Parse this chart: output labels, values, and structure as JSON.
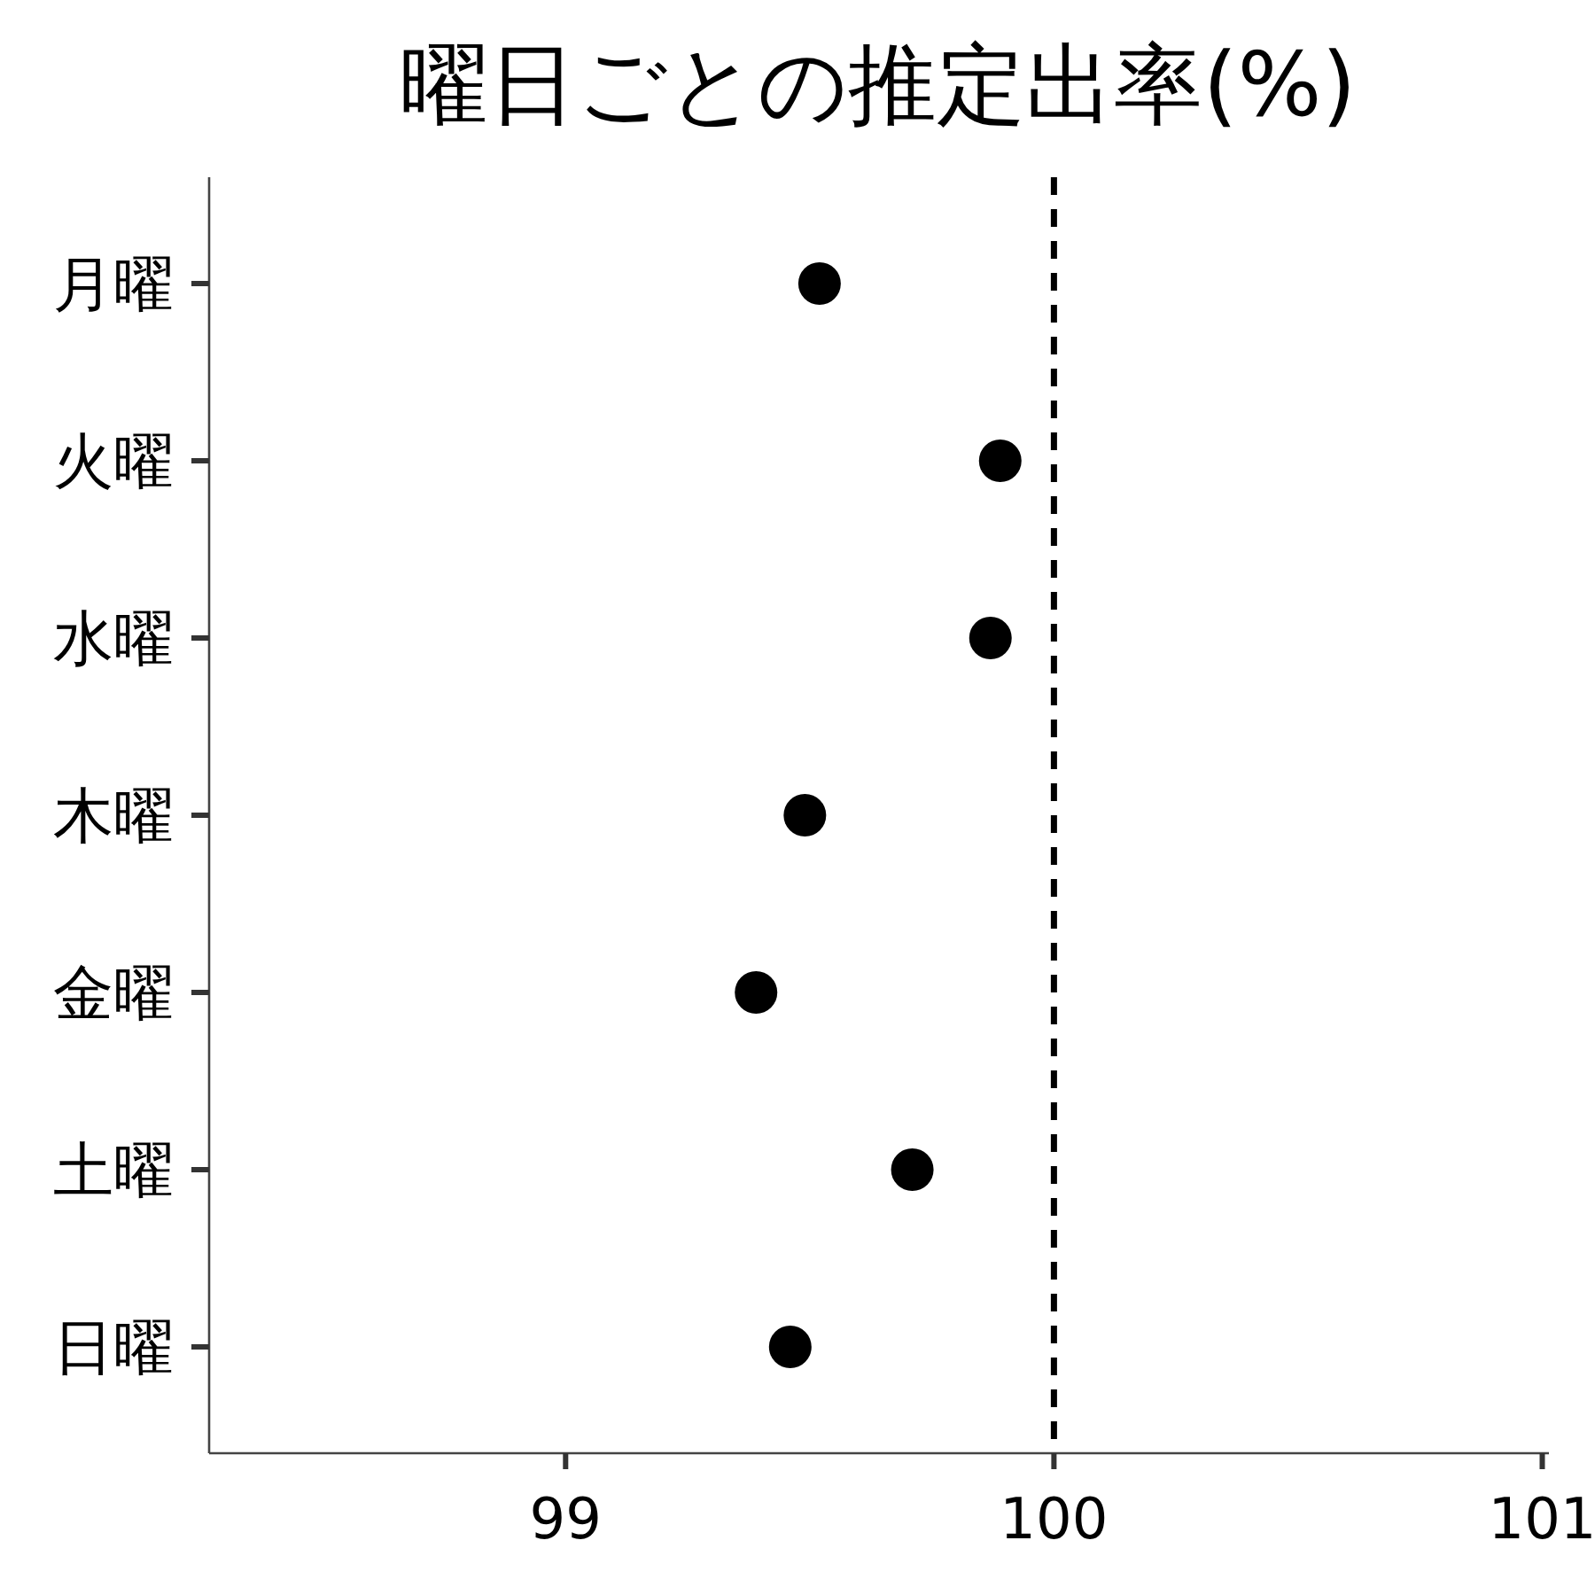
{
  "chart_data": {
    "type": "scatter",
    "title": "曜日ごとの推定出率(%)",
    "orientation": "horizontal",
    "categories": [
      "月曜",
      "火曜",
      "水曜",
      "木曜",
      "金曜",
      "土曜",
      "日曜"
    ],
    "series": [
      {
        "color": "#000000",
        "values": [
          99.52,
          99.89,
          99.87,
          99.49,
          99.39,
          99.71,
          99.46
        ]
      }
    ],
    "xlim": [
      98.27,
      101.01
    ],
    "xticks": [
      99,
      100,
      101
    ],
    "ref_lines": [
      {
        "axis": "x",
        "value": 100,
        "color": "#000000",
        "line_style": "dashed"
      }
    ],
    "marker": "circle",
    "grid": false
  }
}
